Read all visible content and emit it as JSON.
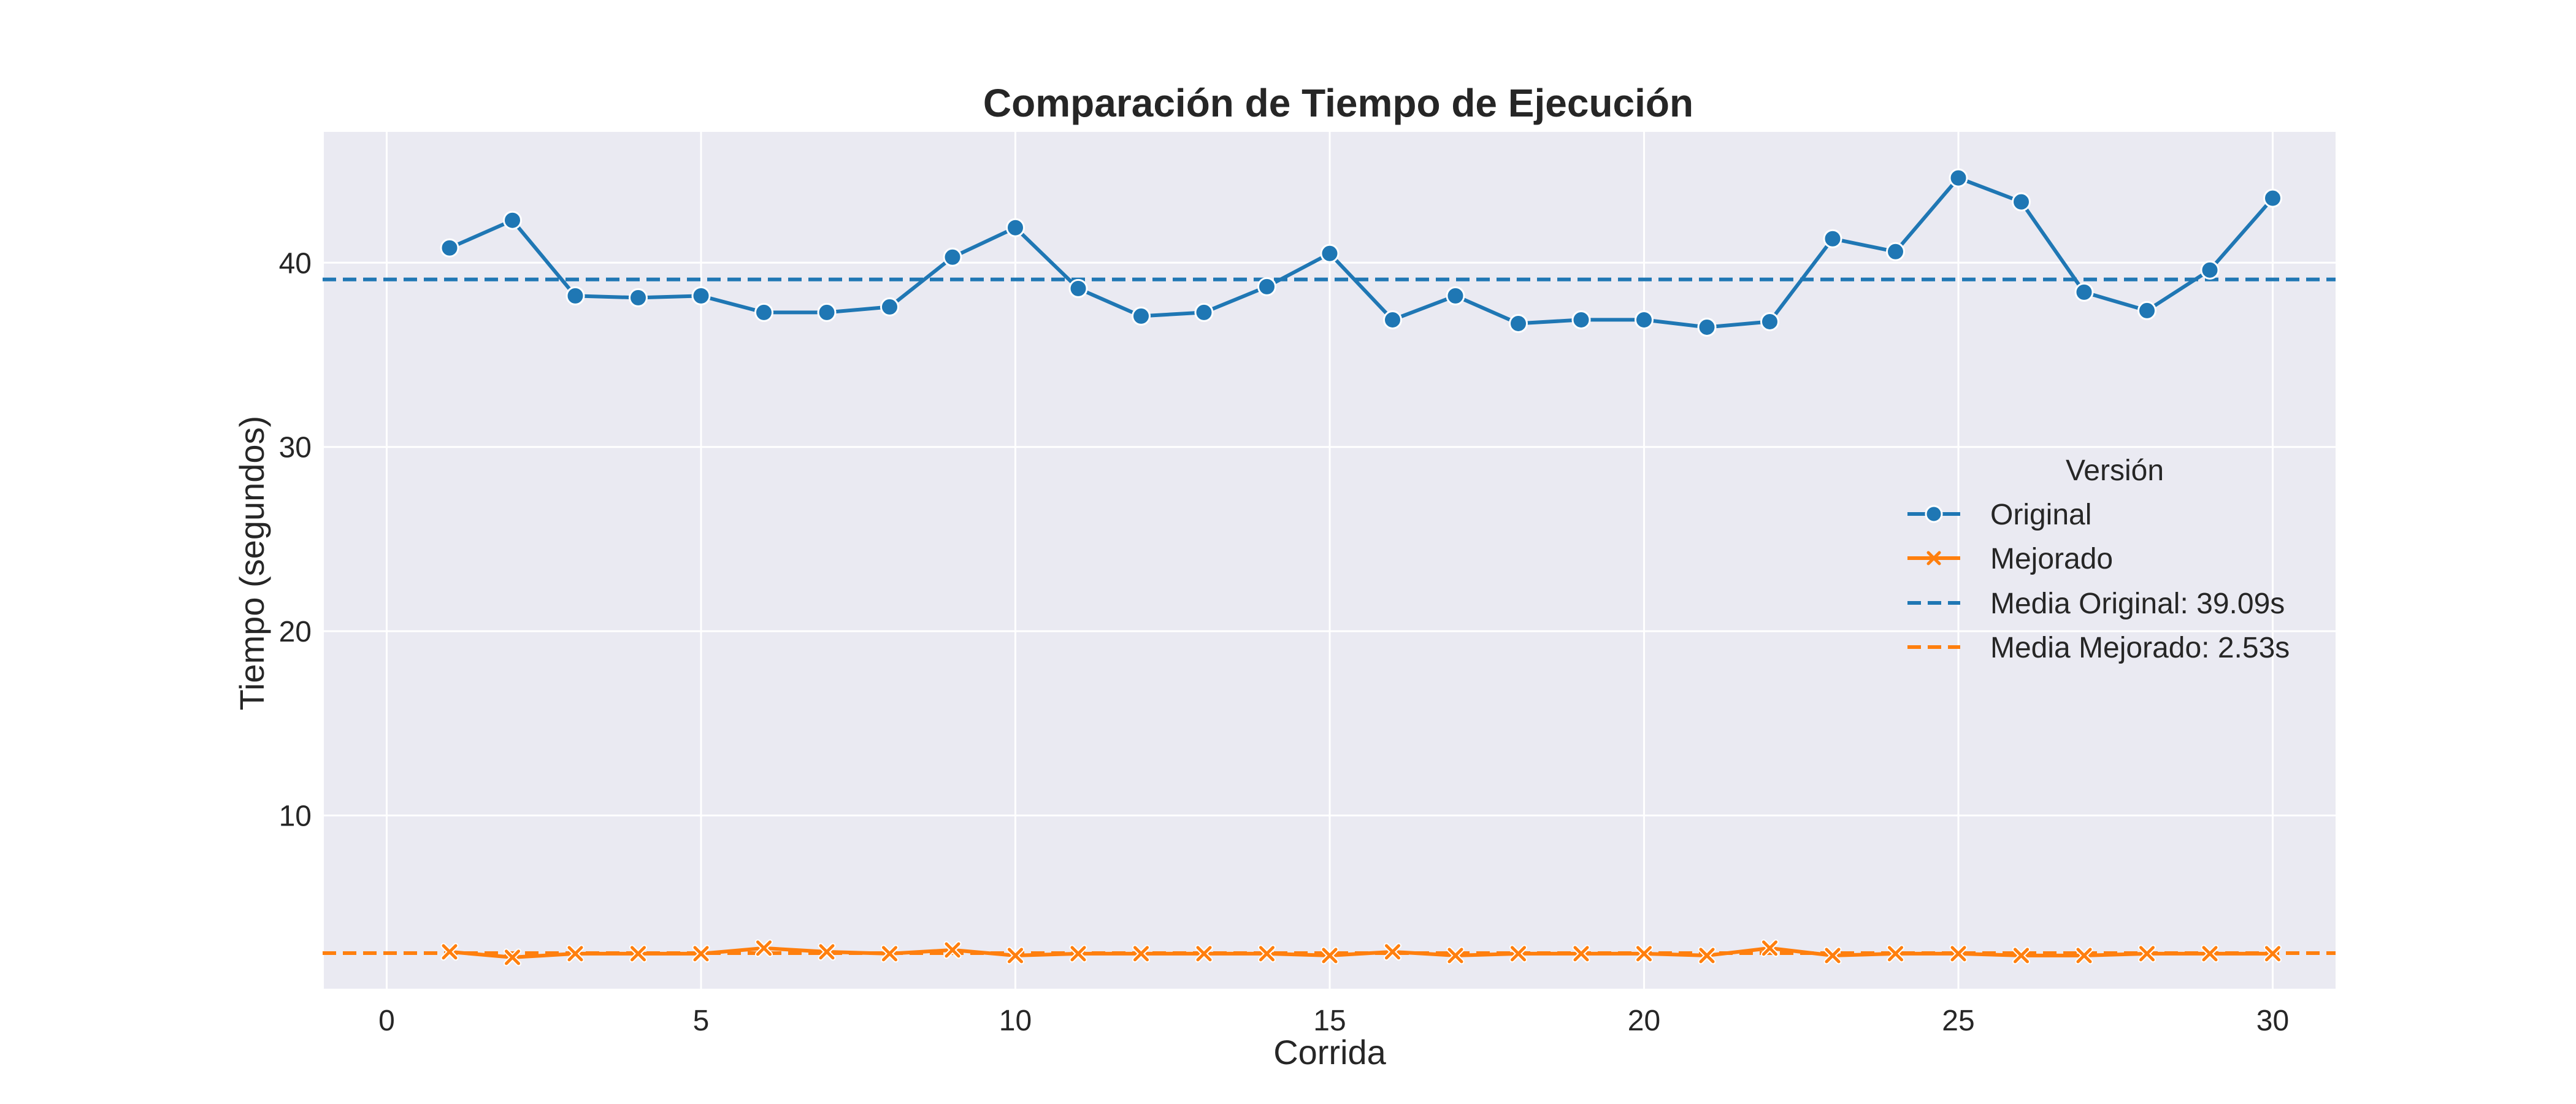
{
  "chart_data": {
    "type": "line",
    "title": "Comparación de Tiempo de Ejecución",
    "xlabel": "Corrida",
    "ylabel": "Tiempo (segundos)",
    "xlim": [
      -1,
      31
    ],
    "ylim": [
      0.6,
      47.1
    ],
    "xticks": [
      0,
      5,
      10,
      15,
      20,
      25,
      30
    ],
    "yticks": [
      10,
      20,
      30,
      40
    ],
    "grid": true,
    "legend": {
      "title": "Versión",
      "position": "center-right"
    },
    "x": [
      1,
      2,
      3,
      4,
      5,
      6,
      7,
      8,
      9,
      10,
      11,
      12,
      13,
      14,
      15,
      16,
      17,
      18,
      19,
      20,
      21,
      22,
      23,
      24,
      25,
      26,
      27,
      28,
      29,
      30
    ],
    "series": [
      {
        "name": "Original",
        "color": "#1f77b4",
        "marker": "circle",
        "values": [
          40.8,
          42.3,
          38.2,
          38.1,
          38.2,
          37.3,
          37.3,
          37.6,
          40.3,
          41.9,
          38.6,
          37.1,
          37.3,
          38.7,
          40.5,
          36.9,
          38.2,
          36.7,
          36.9,
          36.9,
          36.5,
          36.8,
          41.3,
          40.6,
          44.6,
          43.3,
          38.4,
          37.4,
          39.6,
          43.5
        ]
      },
      {
        "name": "Mejorado",
        "color": "#ff7f0e",
        "marker": "x",
        "values": [
          2.6,
          2.3,
          2.5,
          2.5,
          2.5,
          2.8,
          2.6,
          2.5,
          2.7,
          2.4,
          2.5,
          2.5,
          2.5,
          2.5,
          2.4,
          2.6,
          2.4,
          2.5,
          2.5,
          2.5,
          2.4,
          2.8,
          2.4,
          2.5,
          2.5,
          2.4,
          2.4,
          2.5,
          2.5,
          2.5
        ]
      }
    ],
    "reference_lines": [
      {
        "name": "Media Original: 39.09s",
        "value": 39.09,
        "color": "#1f77b4",
        "style": "dashed"
      },
      {
        "name": "Media Mejorado: 2.53s",
        "value": 2.53,
        "color": "#ff7f0e",
        "style": "dashed"
      }
    ],
    "plot_background": "#eaeaf2",
    "grid_color": "#ffffff"
  }
}
